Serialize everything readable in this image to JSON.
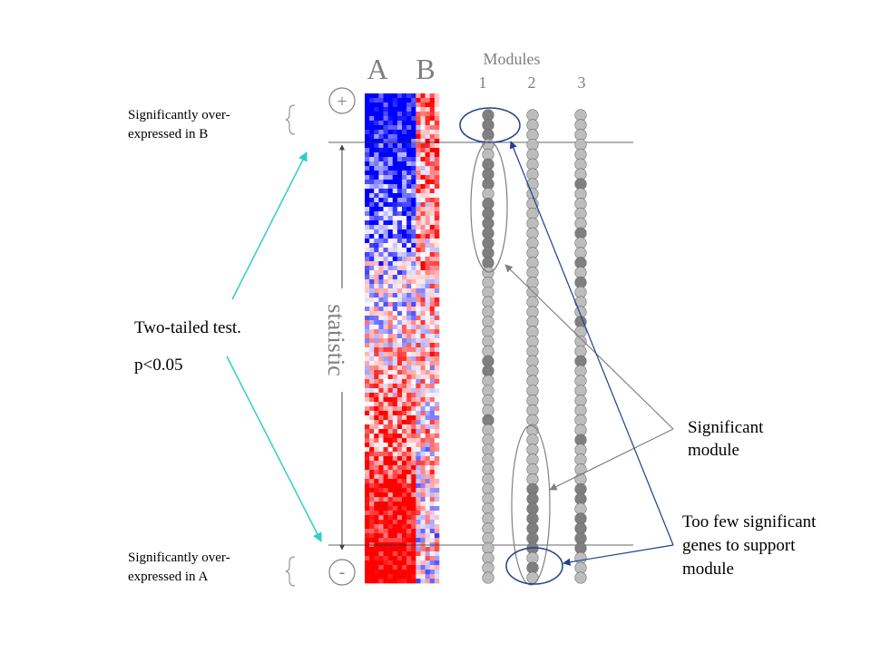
{
  "labels": {
    "top_region": "Significantly over-expressed in B",
    "bottom_region": "Significantly over-expressed in A",
    "test_line1": "Two-tailed test.",
    "test_line2": "p<0.05",
    "significant_module": "Significant module",
    "too_few": "Too few significant genes to support module",
    "statistic_axis": "statistic",
    "plus": "+",
    "minus": "-",
    "heatmap_col_a": "A",
    "heatmap_col_b": "B",
    "modules_header": "Modules",
    "module_1": "1",
    "module_2": "2",
    "module_3": "3"
  },
  "colors": {
    "red": "#ff0000",
    "blue": "#0000ff",
    "teal_arrow": "#33cccc",
    "navy_annotation": "#1f3f8f",
    "gray_annotation": "#808080",
    "gene_light": "#bdbdbd",
    "gene_dark": "#7f7f7f"
  },
  "modules": {
    "module_1_significant_genes": [
      0,
      1,
      2,
      5,
      6,
      7,
      9,
      10,
      11,
      12,
      13,
      14,
      15,
      25,
      26,
      31
    ],
    "module_2_significant_genes": [
      38,
      39,
      40,
      41,
      42,
      43,
      44,
      46
    ],
    "module_3_significant_genes": [
      7,
      12,
      15,
      17,
      21,
      25,
      33,
      38,
      39,
      41,
      42,
      43,
      44
    ]
  }
}
